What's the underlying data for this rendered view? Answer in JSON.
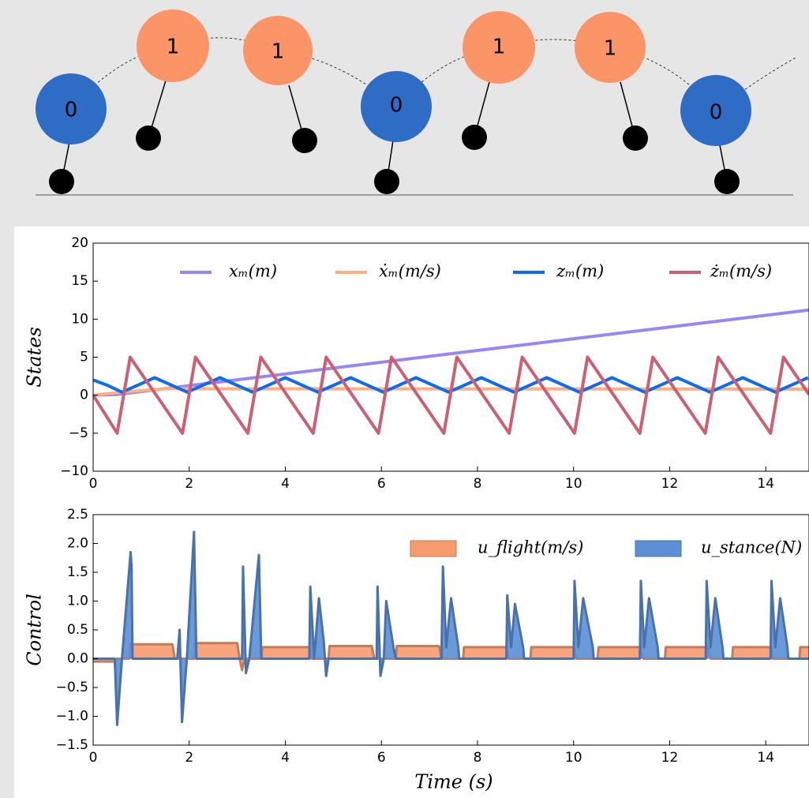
{
  "diagram": {
    "nodes": [
      {
        "label": "0"
      },
      {
        "label": "1"
      },
      {
        "label": "1"
      },
      {
        "label": "0"
      },
      {
        "label": "1"
      },
      {
        "label": "1"
      },
      {
        "label": "0"
      }
    ]
  },
  "chart_data": [
    {
      "type": "line",
      "y_label": "States",
      "xlim": [
        0,
        14.9
      ],
      "xticks": [
        0,
        2,
        4,
        6,
        8,
        10,
        12,
        14
      ],
      "ylim": [
        -10,
        20
      ],
      "yticks": [
        {
          "value": -10,
          "label": "−10"
        },
        {
          "value": -5,
          "label": "−5"
        },
        0,
        5,
        10,
        15,
        20
      ],
      "series": [
        {
          "name": "xₘ(m)",
          "color": "#9a85f5",
          "x": [
            0,
            0.5,
            14.9
          ],
          "values": [
            0,
            0.1,
            11.2
          ]
        },
        {
          "name": "ẋₘ(m/s)",
          "color": "#ffae7e",
          "x": [
            0,
            0.6,
            1.5,
            14.9
          ],
          "values": [
            0,
            0.4,
            0.85,
            0.8
          ]
        },
        {
          "name": "zₘ(m)",
          "color": "#0d6bf0",
          "x": [
            0,
            0.3,
            0.6,
            0.94,
            1.28,
            1.62,
            1.96,
            2.3,
            2.64,
            2.98,
            3.32,
            3.66,
            4.0,
            4.34,
            4.68,
            5.02,
            5.36,
            5.7,
            6.04,
            6.38,
            6.72,
            7.06,
            7.4,
            7.74,
            8.08,
            8.42,
            8.76,
            9.1,
            9.44,
            9.78,
            10.12,
            10.46,
            10.8,
            11.14,
            11.48,
            11.82,
            12.16,
            12.5,
            12.84,
            13.18,
            13.52,
            13.86,
            14.2,
            14.54,
            14.88
          ],
          "values": [
            2.0,
            1.3,
            0.4,
            1.35,
            2.3,
            1.35,
            0.4,
            1.35,
            2.3,
            1.35,
            0.4,
            1.35,
            2.3,
            1.35,
            0.4,
            1.35,
            2.3,
            1.35,
            0.4,
            1.35,
            2.3,
            1.35,
            0.4,
            1.35,
            2.3,
            1.35,
            0.4,
            1.35,
            2.3,
            1.35,
            0.4,
            1.35,
            2.3,
            1.35,
            0.4,
            1.35,
            2.3,
            1.35,
            0.4,
            1.35,
            2.3,
            1.35,
            0.4,
            1.35,
            2.3
          ]
        },
        {
          "name": "żₘ(m/s)",
          "color": "#cc5f73",
          "x": [
            0,
            0.5,
            0.77,
            1.86,
            2.13,
            3.22,
            3.49,
            4.58,
            4.85,
            5.94,
            6.21,
            7.3,
            7.57,
            8.66,
            8.93,
            10.02,
            10.29,
            11.38,
            11.65,
            12.74,
            13.01,
            14.1,
            14.37,
            14.9
          ],
          "values": [
            0,
            -5,
            5,
            -5,
            5,
            -5,
            5,
            -5,
            5,
            -5,
            5,
            -5,
            5,
            -5,
            5,
            -5,
            5,
            -5,
            5,
            -5,
            5,
            -5,
            5,
            0.1
          ]
        }
      ]
    },
    {
      "type": "area",
      "y_label": "Control",
      "x_label": "Time (s)",
      "xlim": [
        0,
        14.9
      ],
      "xticks": [
        0,
        2,
        4,
        6,
        8,
        10,
        12,
        14
      ],
      "ylim": [
        -1.5,
        2.5
      ],
      "yticks": [
        {
          "value": -1.5,
          "label": "−1.5"
        },
        {
          "value": -1,
          "label": "−1.0"
        },
        {
          "value": -0.5,
          "label": "−0.5"
        },
        {
          "value": 0,
          "label": "0.0"
        },
        0.5,
        {
          "value": 1,
          "label": "1.0"
        },
        1.5,
        {
          "value": 2,
          "label": "2.0"
        },
        2.5
      ],
      "series": [
        {
          "name": "u_flight(m/s)",
          "color": "#f79a6e",
          "x": [
            0,
            0.45,
            0.5,
            0.75,
            0.77,
            1.65,
            1.7,
            2.1,
            2.12,
            3.0,
            3.05,
            3.1,
            3.15,
            3.5,
            3.52,
            4.5,
            4.55,
            4.9,
            4.92,
            5.8,
            5.85,
            6.3,
            6.32,
            7.2,
            7.25,
            7.7,
            7.72,
            8.6,
            8.65,
            9.1,
            9.12,
            10.0,
            10.05,
            10.5,
            10.52,
            11.4,
            11.45,
            11.9,
            11.92,
            12.8,
            12.85,
            13.3,
            13.32,
            14.1,
            14.15,
            14.7,
            14.72,
            14.9
          ],
          "values": [
            -0.05,
            -0.05,
            0,
            0,
            0.25,
            0.25,
            0,
            0,
            0.27,
            0.27,
            0,
            -0.2,
            0,
            0,
            0.2,
            0.2,
            0,
            0,
            0.22,
            0.22,
            0,
            0,
            0.22,
            0.22,
            0,
            0,
            0.2,
            0.2,
            0,
            0,
            0.2,
            0.2,
            0,
            0,
            0.2,
            0.2,
            0,
            0,
            0.2,
            0.2,
            0,
            0,
            0.2,
            0.2,
            0,
            0,
            0.2,
            0.2
          ]
        },
        {
          "name": "u_stance(N)",
          "color": "#5b8fd6",
          "x": [
            0,
            0.45,
            0.5,
            0.6,
            0.78,
            0.8,
            0.82,
            1.75,
            1.8,
            1.85,
            1.95,
            2.1,
            2.15,
            3.1,
            3.12,
            3.18,
            3.25,
            3.45,
            3.5,
            4.5,
            4.52,
            4.6,
            4.7,
            4.8,
            4.85,
            4.9,
            5.9,
            5.92,
            5.98,
            6.05,
            6.1,
            6.25,
            6.3,
            7.25,
            7.28,
            7.35,
            7.45,
            7.6,
            7.62,
            8.6,
            8.62,
            8.7,
            8.78,
            8.95,
            8.97,
            10.0,
            10.02,
            10.1,
            10.2,
            10.4,
            10.42,
            11.38,
            11.4,
            11.47,
            11.57,
            11.75,
            11.77,
            12.75,
            12.77,
            12.85,
            12.95,
            13.1,
            13.12,
            14.1,
            14.12,
            14.2,
            14.3,
            14.45,
            14.47,
            14.9
          ],
          "values": [
            0,
            0,
            -1.15,
            0,
            1.85,
            1.6,
            0,
            0,
            0.5,
            -1.1,
            0,
            2.2,
            0,
            0,
            1.6,
            -0.25,
            0,
            1.8,
            0,
            0,
            1.25,
            0,
            1.05,
            0.3,
            -0.3,
            0,
            0,
            1.25,
            -0.3,
            0,
            1.0,
            0.2,
            0,
            0,
            1.6,
            0.2,
            1.05,
            0.2,
            0,
            0,
            1.1,
            0.2,
            0.95,
            0.2,
            0,
            0,
            1.35,
            0.2,
            1.05,
            0.2,
            0,
            0,
            1.35,
            0.2,
            1.05,
            0.2,
            0,
            0,
            1.35,
            0.2,
            1.05,
            0.2,
            0,
            0,
            1.35,
            0.2,
            1.05,
            0.2,
            0,
            0
          ]
        }
      ]
    }
  ]
}
